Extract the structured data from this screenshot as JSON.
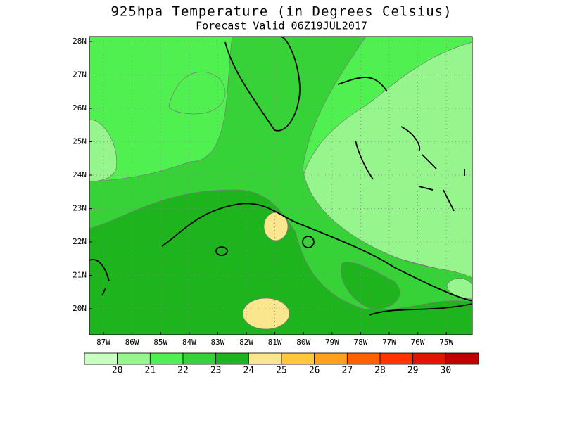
{
  "title": "925hpa Temperature (in Degrees Celsius)",
  "subtitle": "Forecast Valid  06Z19JUL2017",
  "lat_labels": [
    "28N",
    "27N",
    "26N",
    "25N",
    "24N",
    "23N",
    "22N",
    "21N",
    "20N"
  ],
  "lon_labels": [
    "87W",
    "86W",
    "85W",
    "84W",
    "83W",
    "82W",
    "81W",
    "80W",
    "79W",
    "78W",
    "77W",
    "76W",
    "75W"
  ],
  "colorbar": {
    "labels": [
      20,
      21,
      22,
      23,
      24,
      25,
      26,
      27,
      28,
      29,
      30
    ],
    "colors": [
      "#c8ffc0",
      "#96f58c",
      "#50f050",
      "#37d237",
      "#1eb41e",
      "#fae68c",
      "#ffc83c",
      "#ffa01e",
      "#ff6000",
      "#ff3200",
      "#e11400",
      "#c00000"
    ]
  }
}
